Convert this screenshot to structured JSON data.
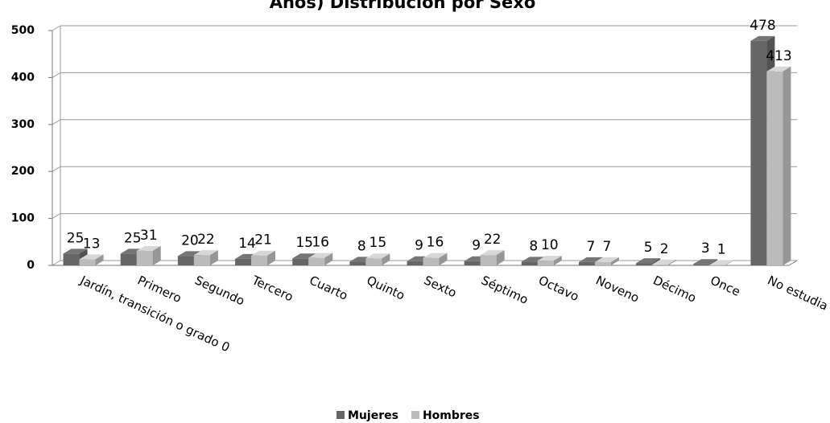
{
  "chart_data": {
    "type": "bar",
    "title": "Años) Distribución por Sexo",
    "categories": [
      "Jardín, transición o grado 0",
      "Primero",
      "Segundo",
      "Tercero",
      "Cuarto",
      "Quinto",
      "Sexto",
      "Séptimo",
      "Octavo",
      "Noveno",
      "Décimo",
      "Once",
      "No estudia"
    ],
    "series": [
      {
        "name": "Mujeres",
        "color": "#666666",
        "values": [
          25,
          25,
          20,
          14,
          15,
          8,
          9,
          9,
          8,
          7,
          5,
          3,
          478
        ]
      },
      {
        "name": "Hombres",
        "color": "#bbbbbb",
        "values": [
          13,
          31,
          22,
          21,
          16,
          15,
          16,
          22,
          10,
          7,
          2,
          1,
          413
        ]
      }
    ],
    "ylim": [
      0,
      500
    ],
    "yticks": [
      0,
      100,
      200,
      300,
      400,
      500
    ],
    "grid": true,
    "legend": "bottom"
  }
}
